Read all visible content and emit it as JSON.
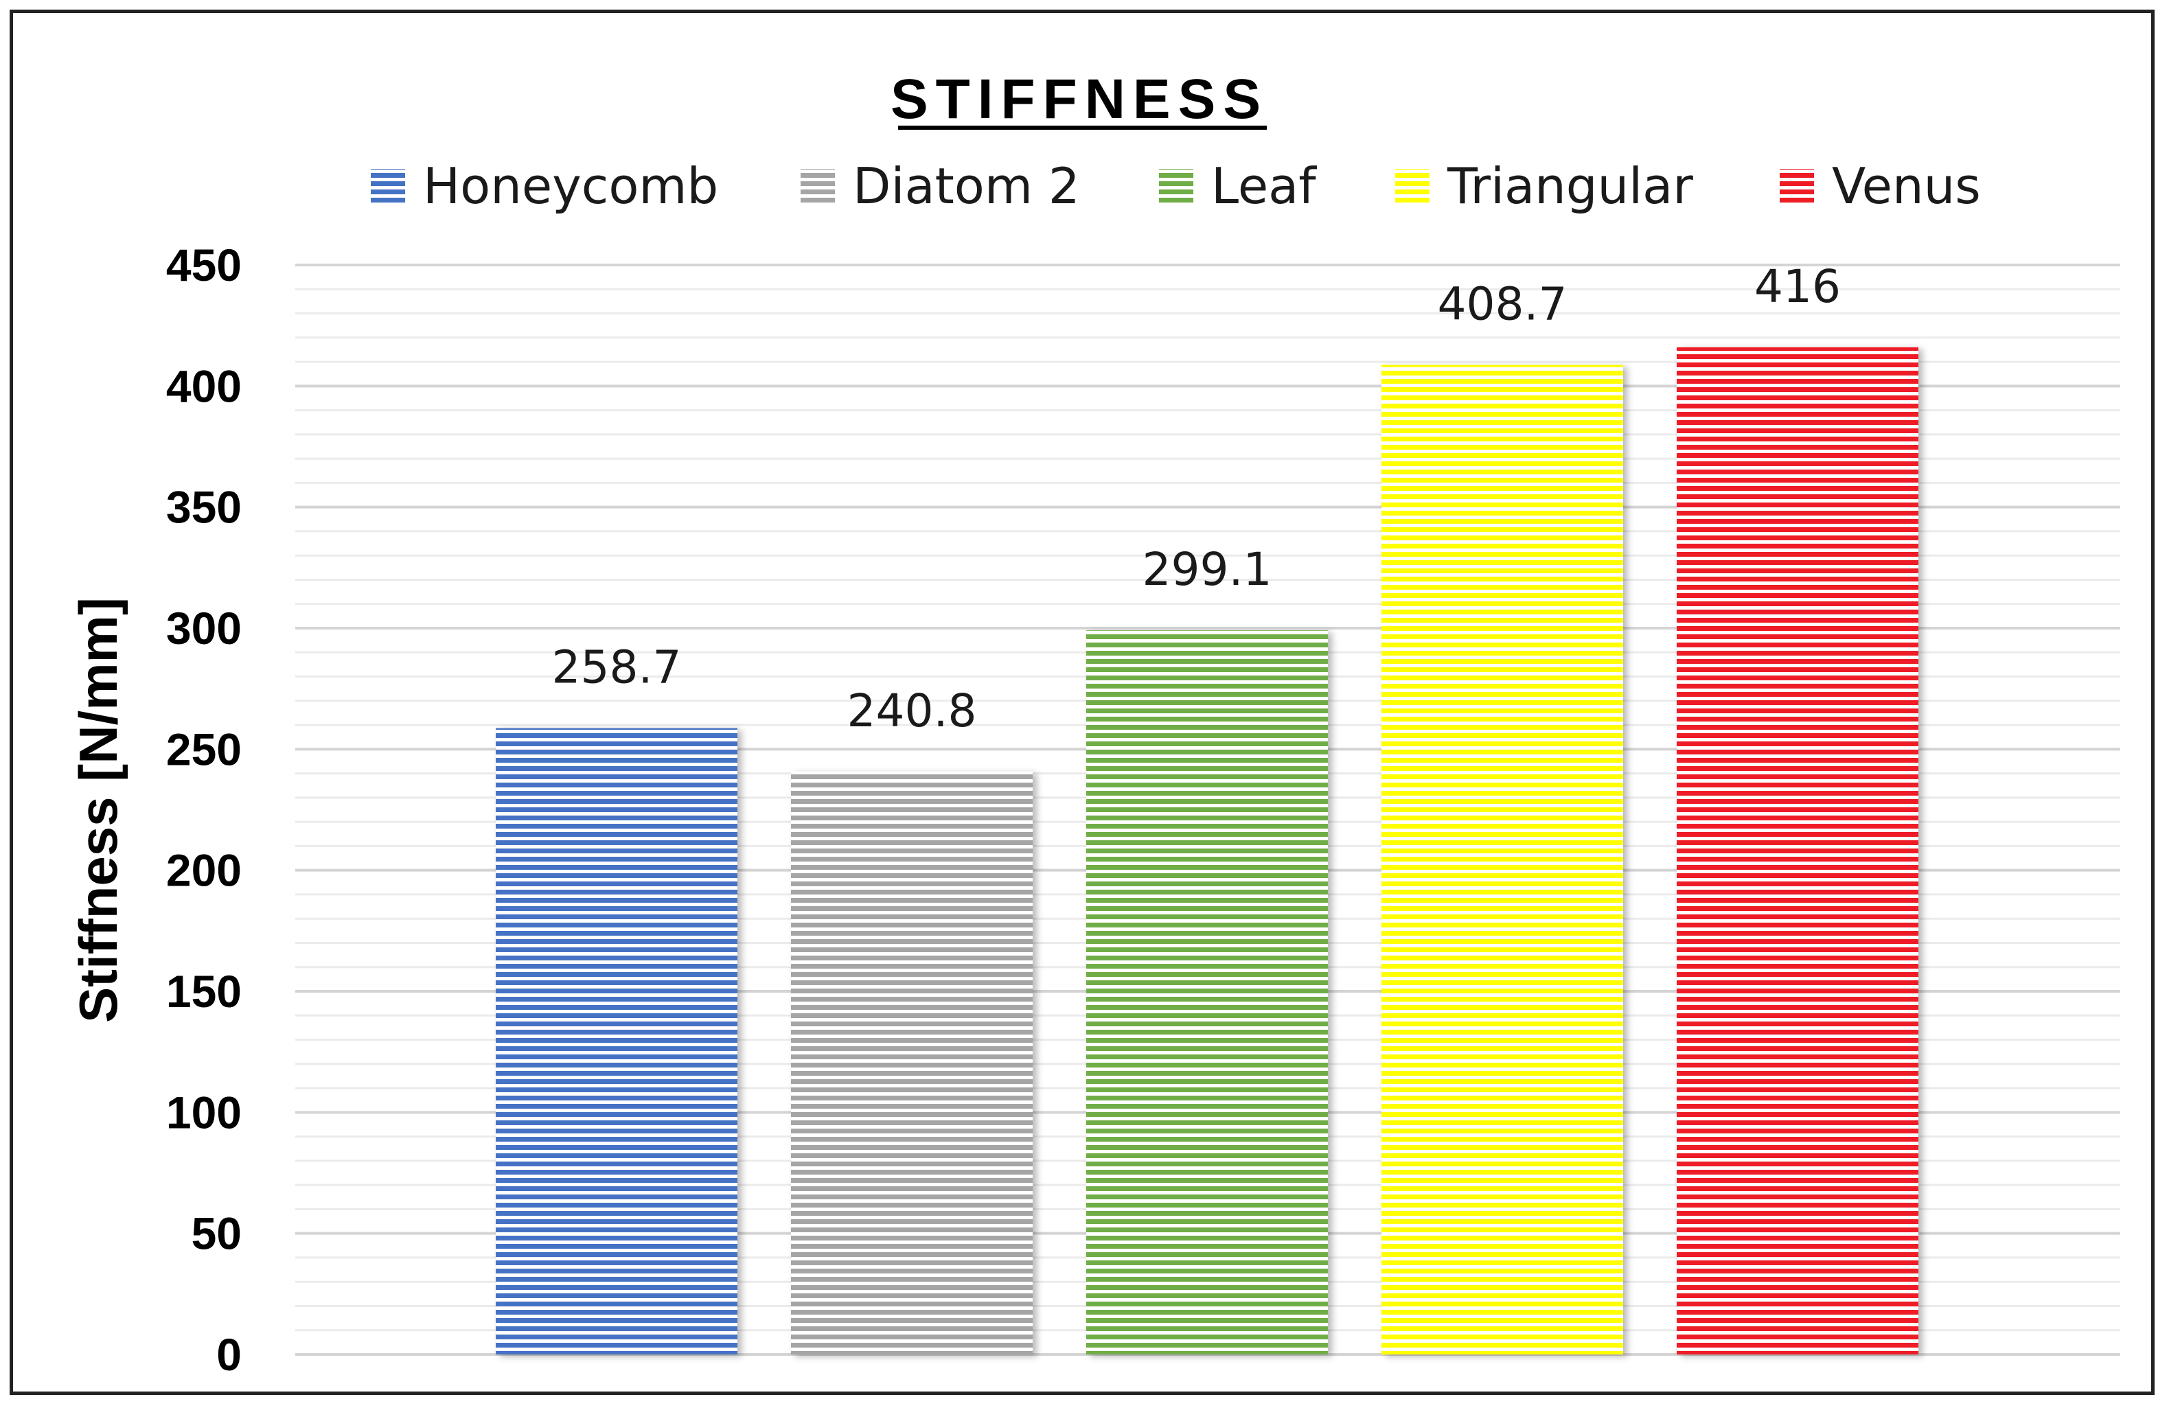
{
  "chart_data": {
    "type": "bar",
    "title": "STIFFNESS",
    "ylabel": "Stiffness [N/mm]",
    "xlabel": "",
    "ylim": [
      0,
      450
    ],
    "yticks": [
      0,
      50,
      100,
      150,
      200,
      250,
      300,
      350,
      400,
      450
    ],
    "grid": true,
    "legend_position": "top",
    "series": [
      {
        "name": "Honeycomb",
        "value": 258.7,
        "label": "258.7",
        "color": "#4472C4"
      },
      {
        "name": "Diatom 2",
        "value": 240.8,
        "label": "240.8",
        "color": "#A5A5A5"
      },
      {
        "name": "Leaf",
        "value": 299.1,
        "label": "299.1",
        "color": "#70AD47"
      },
      {
        "name": "Triangular",
        "value": 408.7,
        "label": "408.7",
        "color": "#FFFF00"
      },
      {
        "name": "Venus",
        "value": 416,
        "label": "416",
        "color": "#EE1C25"
      }
    ]
  }
}
